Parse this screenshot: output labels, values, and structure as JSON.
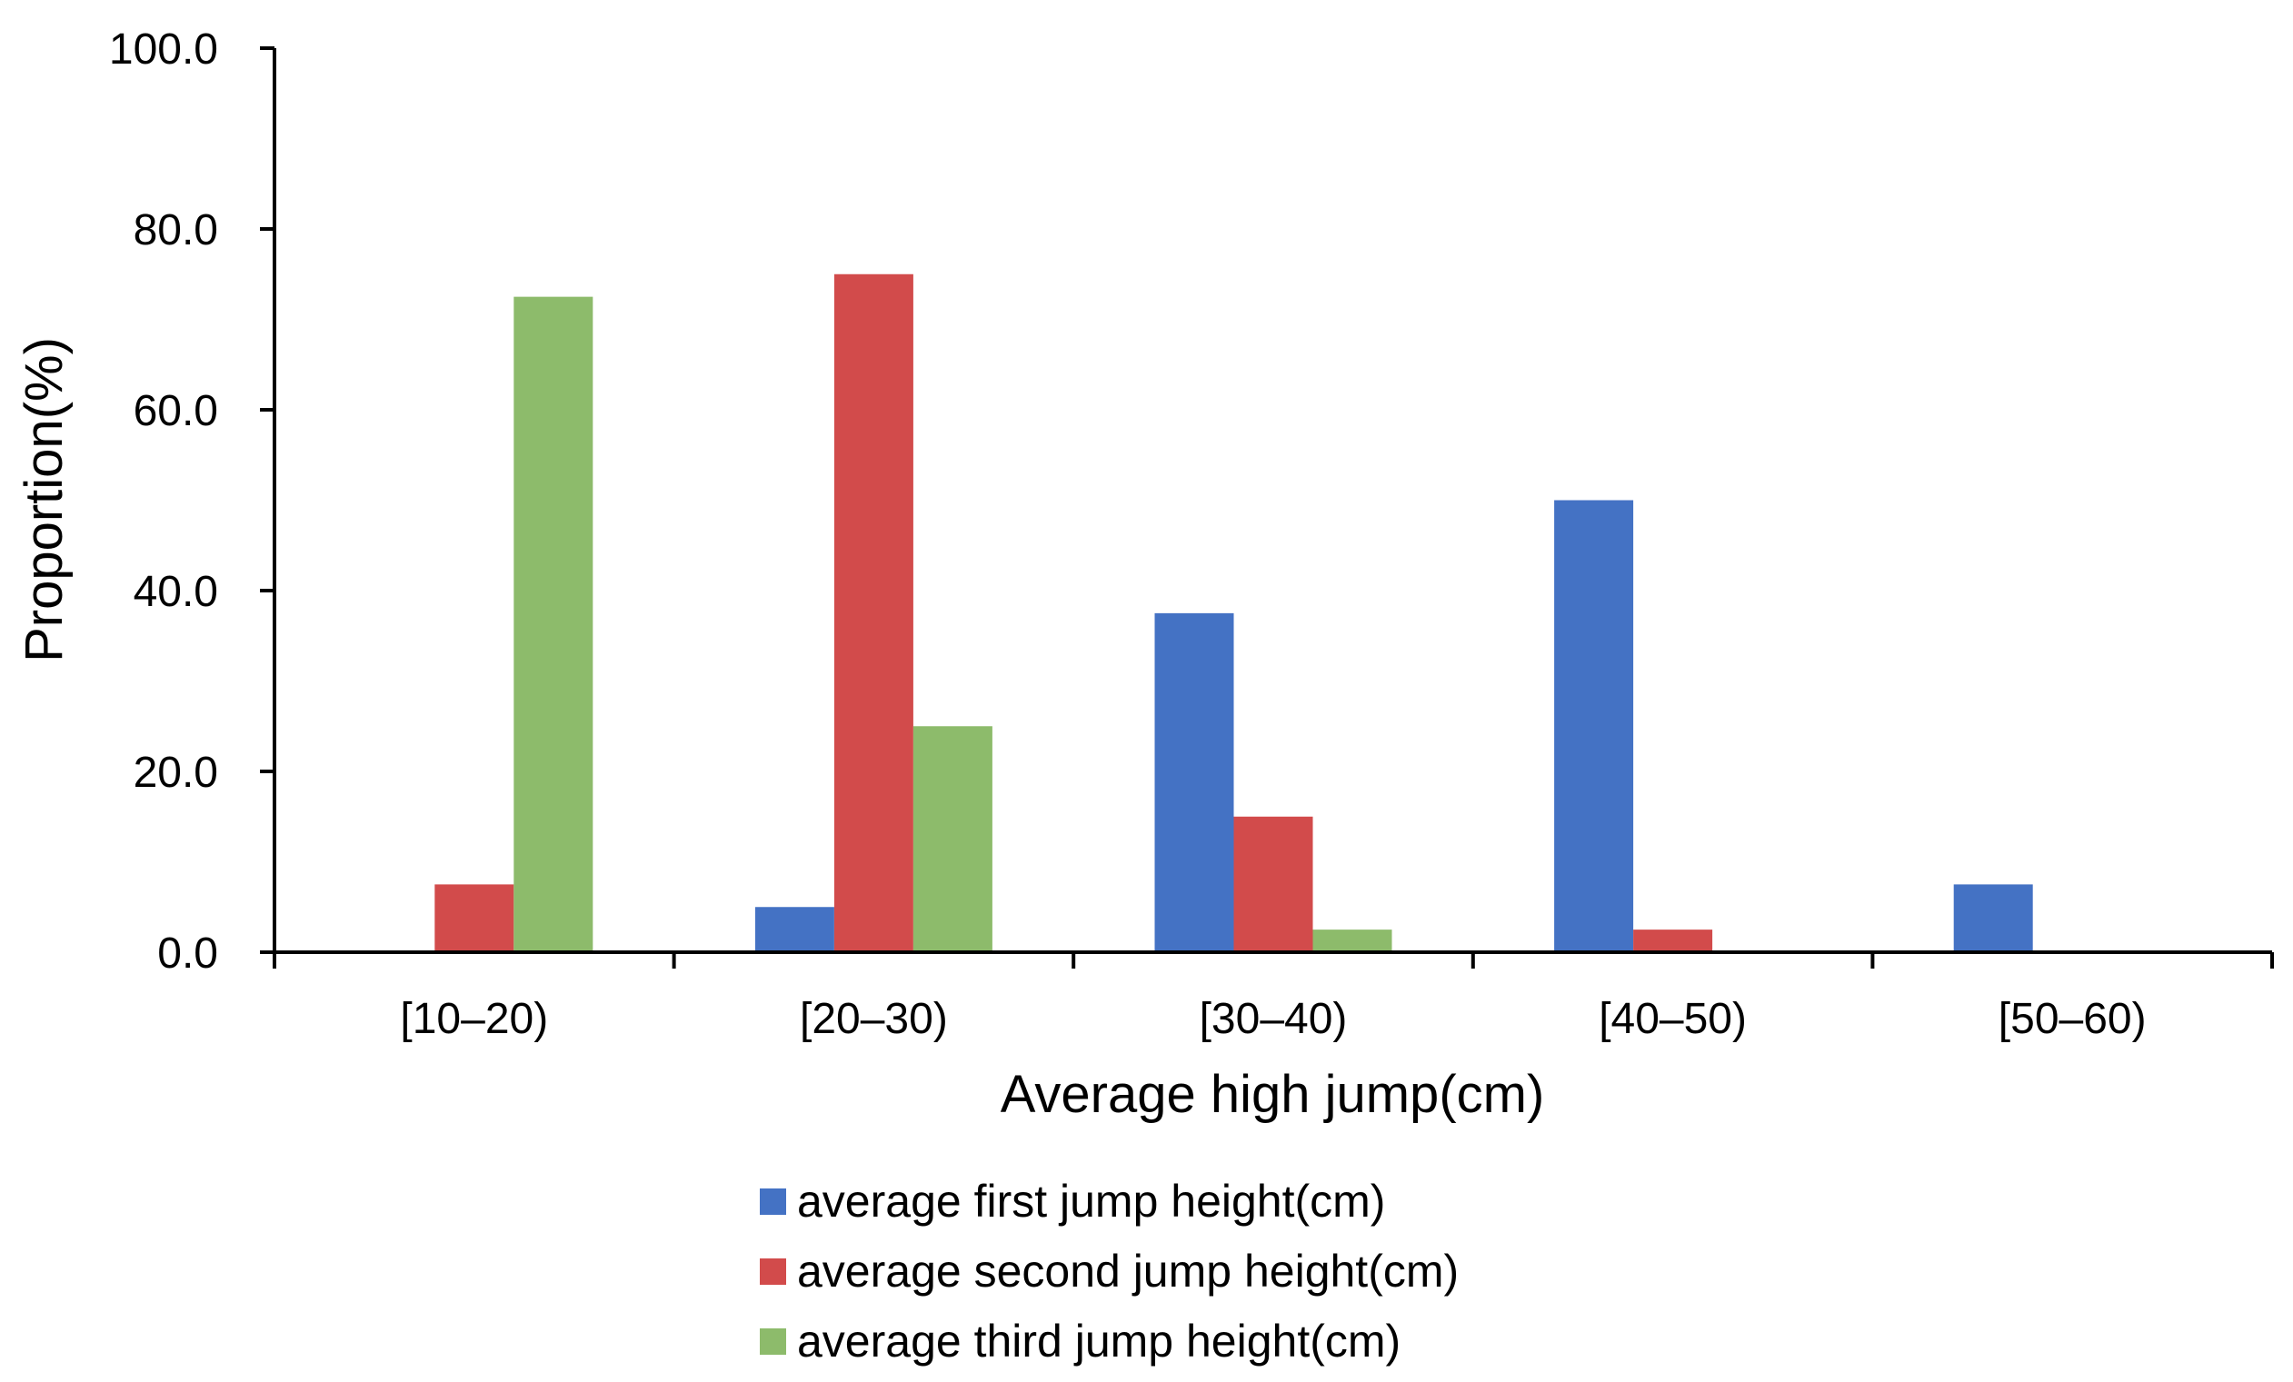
{
  "chart_data": {
    "type": "bar",
    "title": "",
    "xlabel": "Average high jump(cm)",
    "ylabel": "Proportion(%)",
    "ylim": [
      0,
      100
    ],
    "yticks": [
      "0.0",
      "20.0",
      "40.0",
      "60.0",
      "80.0",
      "100.0"
    ],
    "categories": [
      "[10–20)",
      "[20–30)",
      "[30–40)",
      "[40–50)",
      "[50–60)"
    ],
    "series": [
      {
        "name": "average first jump height(cm)",
        "color": "#4472C4",
        "values": [
          0,
          5.0,
          37.5,
          50.0,
          7.5
        ]
      },
      {
        "name": "average second jump height(cm)",
        "color": "#D24B4B",
        "values": [
          7.5,
          75.0,
          15.0,
          2.5,
          0
        ]
      },
      {
        "name": "average third jump height(cm)",
        "color": "#8DBB6B",
        "values": [
          72.5,
          25.0,
          2.5,
          0,
          0
        ]
      }
    ],
    "grid": false,
    "legend_position": "bottom"
  }
}
